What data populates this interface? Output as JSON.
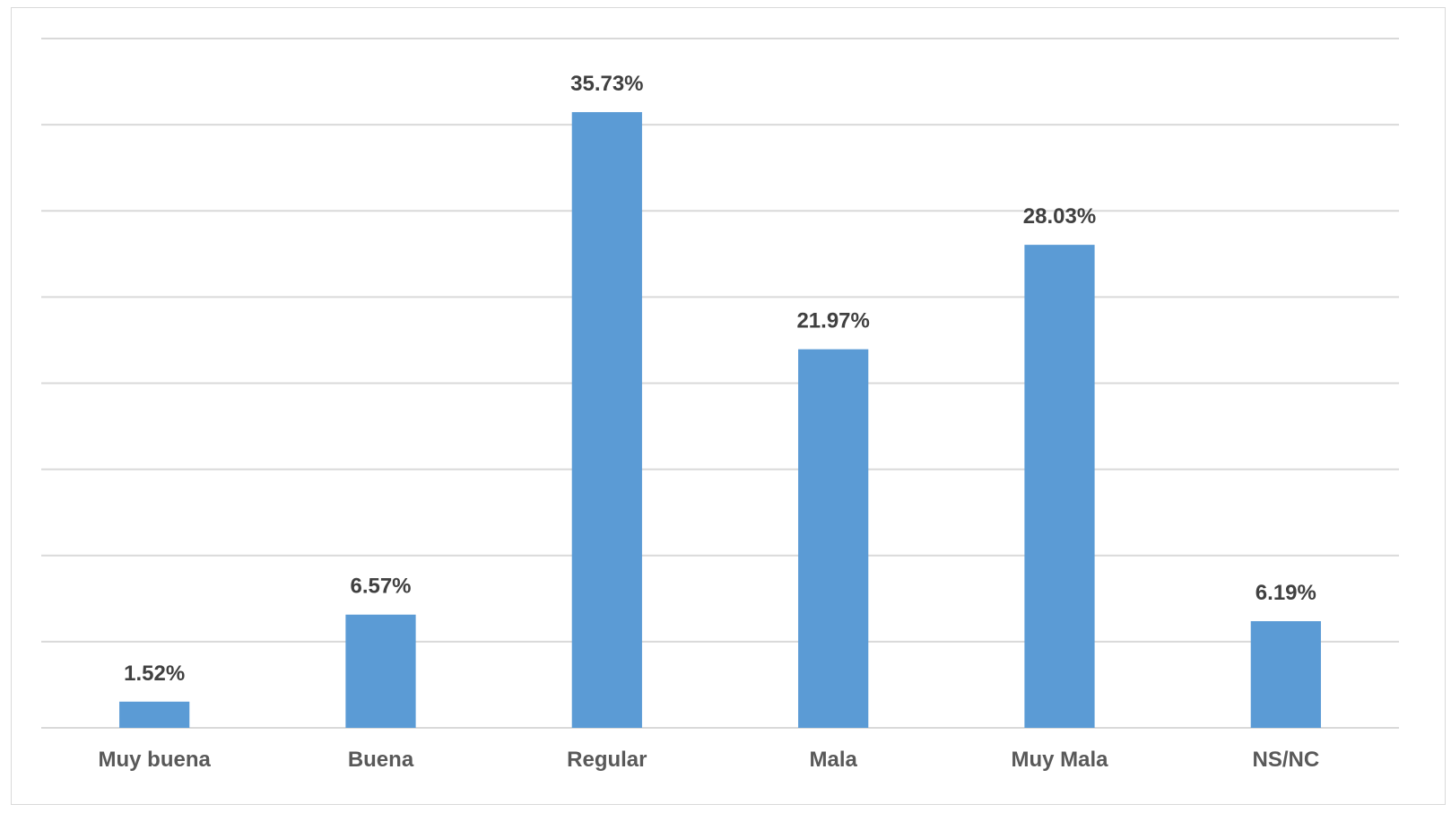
{
  "chart_data": {
    "type": "bar",
    "categories": [
      "Muy buena",
      "Buena",
      "Regular",
      "Mala",
      "Muy Mala",
      "NS/NC"
    ],
    "values": [
      1.52,
      6.57,
      35.73,
      21.97,
      28.03,
      6.19
    ],
    "value_labels": [
      "1.52%",
      "6.57%",
      "35.73%",
      "21.97%",
      "28.03%",
      "6.19%"
    ],
    "title": "",
    "xlabel": "",
    "ylabel": "",
    "ylim": [
      0,
      40
    ],
    "grid": true,
    "legend": "none",
    "colors": {
      "bar": "#5b9bd5",
      "gridline": "#d9d9d9",
      "axis": "#d9d9d9"
    }
  }
}
